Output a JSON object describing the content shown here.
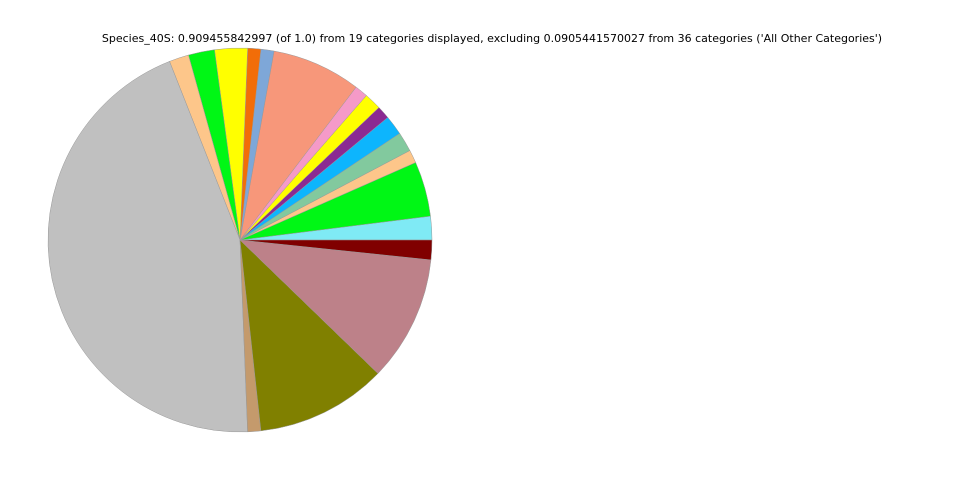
{
  "chart_data": {
    "type": "pie",
    "title": "Species_40S: 0.909455842997 (of 1.0) from 19 categories displayed, excluding 0.0905441570027 from 36 categories ('All Other Categories')",
    "values": [
      0.018,
      0.042,
      0.01,
      0.015,
      0.015,
      0.01,
      0.013,
      0.01,
      0.068,
      0.01,
      0.01,
      0.025,
      0.02,
      0.015,
      0.405,
      0.01,
      0.1,
      0.096,
      0.015
    ],
    "colors": [
      "#7feaf5",
      "#00f715",
      "#fdc68a",
      "#82c99e",
      "#0db5fd",
      "#8b2a92",
      "#ffff00",
      "#f59ac8",
      "#f7977a",
      "#7ea7d8",
      "#f26d08",
      "#ffff00",
      "#00f715",
      "#fdc68a",
      "#c0c0c0",
      "#c49a6c",
      "#808000",
      "#bd8189",
      "#800000"
    ],
    "start_angle": 0,
    "counterclockwise": true
  }
}
